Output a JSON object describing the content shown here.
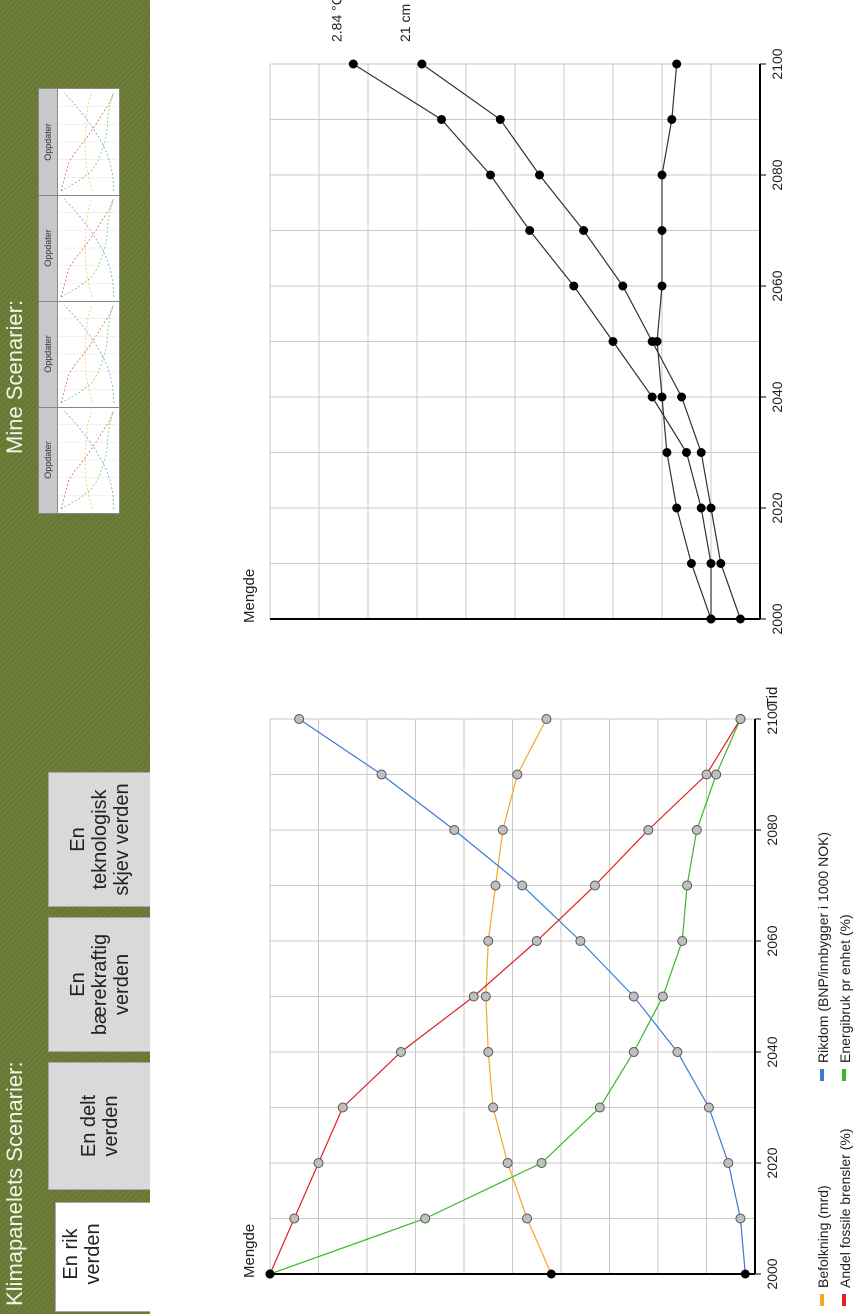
{
  "left_panel": {
    "title": "Klimapanelets Scenarier:",
    "tabs": [
      {
        "label": "En rik verden",
        "active": true
      },
      {
        "label": "En delt\nverden",
        "active": false
      },
      {
        "label": "En\nbærekraftig\nverden",
        "active": false
      },
      {
        "label": "En\nteknologisk\nskjev verden",
        "active": false
      }
    ]
  },
  "right_panel": {
    "title": "Mine Scenarier:",
    "cards": [
      {
        "button": "Oppdater"
      },
      {
        "button": "Oppdater"
      },
      {
        "button": "Oppdater"
      },
      {
        "button": "Oppdater"
      }
    ]
  },
  "colors": {
    "sidebar": "#6b7a35",
    "befolkning": "#f5a623",
    "rikdom": "#3a7bd5",
    "fossil": "#e02020",
    "energi": "#3cb72a"
  },
  "chart_data": [
    {
      "type": "line",
      "ylabel": "Mengde",
      "xlabel": "Tid",
      "x": [
        2000,
        2010,
        2020,
        2030,
        2040,
        2050,
        2060,
        2070,
        2080,
        2090,
        2100
      ],
      "xlim": [
        2000,
        2100
      ],
      "xticks": [
        2000,
        2020,
        2040,
        2060,
        2080,
        2100
      ],
      "grid": true,
      "legend_position": "bottom",
      "series": [
        {
          "name": "Befolkning (mrd)",
          "color": "#f5a623",
          "values": [
            0.42,
            0.47,
            0.51,
            0.54,
            0.55,
            0.555,
            0.55,
            0.535,
            0.52,
            0.49,
            0.43
          ]
        },
        {
          "name": "Rikdom (BNP/innbygger i 1000 NOK)",
          "color": "#3a7bd5",
          "values": [
            0.02,
            0.03,
            0.055,
            0.095,
            0.16,
            0.25,
            0.36,
            0.48,
            0.62,
            0.77,
            0.94
          ]
        },
        {
          "name": "Andel fossile brensler (%)",
          "color": "#e02020",
          "values": [
            1.0,
            0.95,
            0.9,
            0.85,
            0.73,
            0.58,
            0.45,
            0.33,
            0.22,
            0.1,
            0.03
          ]
        },
        {
          "name": "Energibruk pr enhet (%)",
          "color": "#3cb72a",
          "values": [
            1.0,
            0.68,
            0.44,
            0.32,
            0.25,
            0.19,
            0.15,
            0.14,
            0.12,
            0.08,
            0.03
          ]
        }
      ]
    },
    {
      "type": "line",
      "ylabel": "Mengde",
      "x": [
        2000,
        2010,
        2020,
        2030,
        2040,
        2050,
        2060,
        2070,
        2080,
        2090,
        2100
      ],
      "xlim": [
        2000,
        2100
      ],
      "xticks": [
        2000,
        2020,
        2040,
        2060,
        2080,
        2100
      ],
      "grid": true,
      "series": [
        {
          "end_label": "2.84 °C",
          "values": [
            0.1,
            0.1,
            0.12,
            0.15,
            0.22,
            0.3,
            0.38,
            0.47,
            0.55,
            0.65,
            0.83
          ]
        },
        {
          "end_label": "21 cm",
          "values": [
            0.04,
            0.08,
            0.1,
            0.12,
            0.16,
            0.22,
            0.28,
            0.36,
            0.45,
            0.53,
            0.69
          ]
        },
        {
          "values": [
            0.1,
            0.14,
            0.17,
            0.19,
            0.2,
            0.21,
            0.2,
            0.2,
            0.2,
            0.18,
            0.17
          ]
        }
      ]
    }
  ]
}
